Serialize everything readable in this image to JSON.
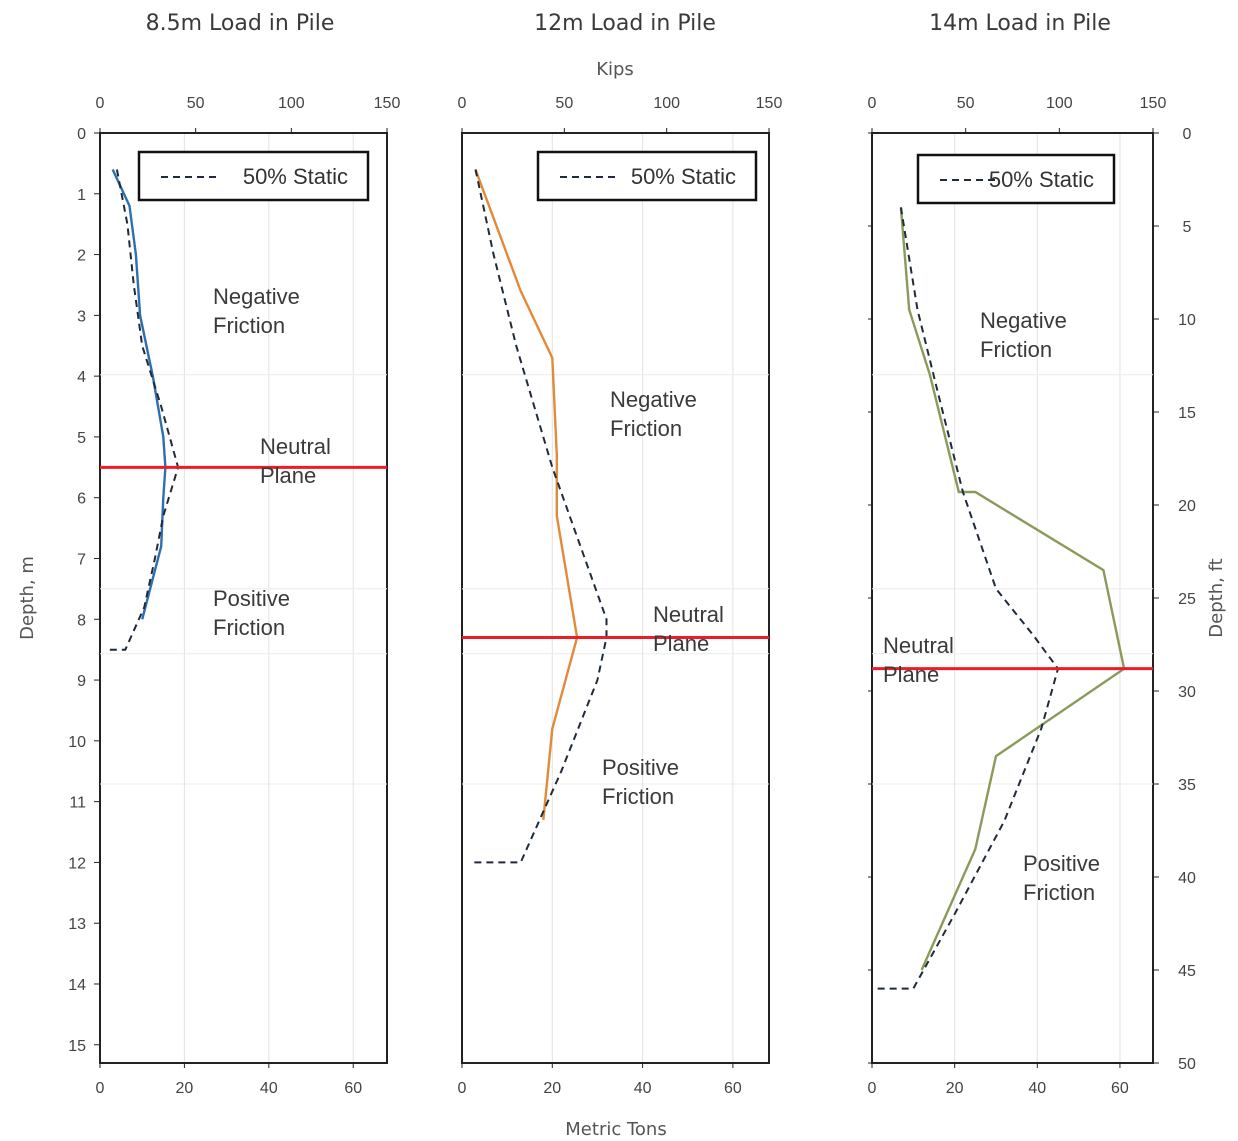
{
  "figure": {
    "top_axis_label": "Kips",
    "bottom_axis_label": "Metric Tons",
    "left_axis_label": "Depth, m",
    "right_axis_label": "Depth, ft"
  },
  "chart_data": [
    {
      "type": "line",
      "title": "8.5m Load in Pile",
      "xlabel": "Metric Tons",
      "x2label": "",
      "ylabel": "Depth, m",
      "xlim": [
        0,
        68
      ],
      "x_ticks": [
        0,
        20,
        40,
        60
      ],
      "x2lim": [
        0,
        150
      ],
      "x2_ticks": [
        0,
        50,
        100,
        150
      ],
      "ylim": [
        15.3,
        0
      ],
      "y_ticks": [
        0,
        1,
        2,
        3,
        4,
        5,
        6,
        7,
        8,
        9,
        10,
        11,
        12,
        13,
        14,
        15
      ],
      "legend": {
        "label": "50% Static",
        "position": "top-right"
      },
      "series": [
        {
          "name": "",
          "color": "#2e6fad",
          "style": "solid",
          "points": [
            [
              3,
              0.6
            ],
            [
              7,
              1.2
            ],
            [
              8.5,
              2
            ],
            [
              9.5,
              3
            ],
            [
              12.5,
              4
            ],
            [
              15,
              5
            ],
            [
              15.5,
              5.5
            ],
            [
              15,
              6
            ],
            [
              14.5,
              6.8
            ],
            [
              10,
              8
            ]
          ]
        },
        {
          "name": "50% Static",
          "color": "#1f2a3a",
          "style": "dashed",
          "points": [
            [
              4,
              0.6
            ],
            [
              6.5,
              1.5
            ],
            [
              8,
              2.5
            ],
            [
              10,
              3.5
            ],
            [
              14.5,
              4.5
            ],
            [
              18.5,
              5.5
            ],
            [
              15,
              6.3
            ],
            [
              13,
              7
            ],
            [
              10.5,
              7.8
            ],
            [
              6,
              8.5
            ],
            [
              2,
              8.5
            ]
          ]
        }
      ],
      "neutral_plane": {
        "depth": 5.5,
        "color": "#ee1c25",
        "label_lines": [
          "Neutral",
          "Plane"
        ]
      },
      "annotations": [
        {
          "lines": [
            "Negative",
            "Friction"
          ]
        },
        {
          "lines": [
            "Positive",
            "Friction"
          ]
        }
      ]
    },
    {
      "type": "line",
      "title": "12m Load in Pile",
      "xlabel": "Metric Tons",
      "x2label": "Kips",
      "ylabel": "",
      "xlim": [
        0,
        68
      ],
      "x_ticks": [
        0,
        20,
        40,
        60
      ],
      "x2lim": [
        0,
        150
      ],
      "x2_ticks": [
        0,
        50,
        100,
        150
      ],
      "ylim": [
        15.3,
        0
      ],
      "y_ticks": [],
      "legend": {
        "label": "50% Static",
        "position": "top-right"
      },
      "series": [
        {
          "name": "",
          "color": "#e08a3a",
          "style": "solid",
          "points": [
            [
              3,
              0.6
            ],
            [
              8,
              1.6
            ],
            [
              13,
              2.6
            ],
            [
              20,
              3.7
            ],
            [
              21,
              5.3
            ],
            [
              21,
              6.3
            ],
            [
              25.5,
              8.3
            ],
            [
              20,
              9.8
            ],
            [
              18,
              11.3
            ]
          ]
        },
        {
          "name": "50% Static",
          "color": "#1f2a3a",
          "style": "dashed",
          "points": [
            [
              3,
              0.6
            ],
            [
              7,
              2
            ],
            [
              12,
              3.5
            ],
            [
              20,
              5.5
            ],
            [
              32,
              8
            ],
            [
              32,
              8.3
            ],
            [
              30,
              9
            ],
            [
              22,
              10.5
            ],
            [
              13,
              12
            ],
            [
              2,
              12
            ]
          ]
        }
      ],
      "neutral_plane": {
        "depth": 8.3,
        "color": "#ee1c25",
        "label_lines": [
          "Neutral",
          "Plane"
        ]
      },
      "annotations": [
        {
          "lines": [
            "Negative",
            "Friction"
          ]
        },
        {
          "lines": [
            "Positive",
            "Friction"
          ]
        }
      ]
    },
    {
      "type": "line",
      "title": "14m Load in Pile",
      "xlabel": "",
      "x2label": "",
      "ylabel": "Depth, ft",
      "xlim": [
        0,
        68
      ],
      "x_ticks": [
        0,
        20,
        40,
        60
      ],
      "x2lim": [
        0,
        150
      ],
      "x2_ticks": [
        0,
        50,
        100,
        150
      ],
      "ylim": [
        50,
        0
      ],
      "y_ticks": [
        0,
        5,
        10,
        15,
        20,
        25,
        30,
        35,
        40,
        45,
        50
      ],
      "y_axis_side": "right",
      "legend": {
        "label": "50% Static",
        "position": "top-right"
      },
      "series": [
        {
          "name": "",
          "color": "#8a9a5b",
          "style": "solid",
          "points": [
            [
              7,
              4
            ],
            [
              9,
              9.5
            ],
            [
              14,
              13
            ],
            [
              21,
              19.3
            ],
            [
              25,
              19.3
            ],
            [
              56,
              23.5
            ],
            [
              61,
              28.8
            ],
            [
              30,
              33.5
            ],
            [
              25,
              38.5
            ],
            [
              12,
              45
            ]
          ]
        },
        {
          "name": "50% Static",
          "color": "#1f2a3a",
          "style": "dashed",
          "points": [
            [
              7,
              4
            ],
            [
              11,
              9.5
            ],
            [
              16,
              14
            ],
            [
              22,
              19.3
            ],
            [
              30,
              24.5
            ],
            [
              39,
              27
            ],
            [
              45,
              28.8
            ],
            [
              41,
              32
            ],
            [
              32,
              37
            ],
            [
              20,
              42
            ],
            [
              10,
              46
            ],
            [
              0,
              46
            ]
          ]
        }
      ],
      "neutral_plane": {
        "depth": 28.8,
        "color": "#ee1c25",
        "label_lines": [
          "Neutral",
          "Plane"
        ]
      },
      "annotations": [
        {
          "lines": [
            "Negative",
            "Friction"
          ]
        },
        {
          "lines": [
            "Positive",
            "Friction"
          ]
        }
      ]
    }
  ]
}
